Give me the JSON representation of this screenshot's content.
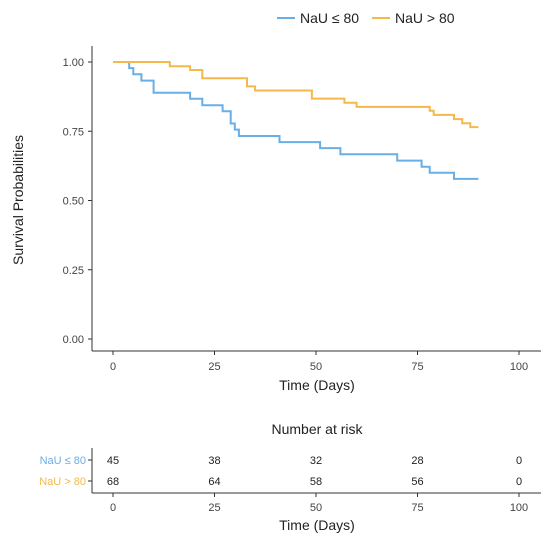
{
  "chart_data": {
    "type": "line",
    "step": true,
    "title": "",
    "xlabel": "Time (Days)",
    "ylabel": "Survival Probabilities",
    "xlim": [
      0,
      100
    ],
    "ylim": [
      0,
      1
    ],
    "x_ticks": [
      "0",
      "25",
      "50",
      "75",
      "100"
    ],
    "y_ticks": [
      "0.00",
      "0.25",
      "0.50",
      "0.75",
      "1.00"
    ],
    "legend_position": "top",
    "grid": false,
    "series": [
      {
        "name": "NaU ≤ 80",
        "color": "#6aaee6",
        "points": [
          [
            0,
            1.0
          ],
          [
            4,
            1.0
          ],
          [
            4,
            0.978
          ],
          [
            5,
            0.978
          ],
          [
            5,
            0.956
          ],
          [
            7,
            0.956
          ],
          [
            7,
            0.933
          ],
          [
            10,
            0.933
          ],
          [
            10,
            0.889
          ],
          [
            19,
            0.889
          ],
          [
            19,
            0.867
          ],
          [
            22,
            0.867
          ],
          [
            22,
            0.844
          ],
          [
            27,
            0.844
          ],
          [
            27,
            0.822
          ],
          [
            29,
            0.822
          ],
          [
            29,
            0.778
          ],
          [
            30,
            0.778
          ],
          [
            30,
            0.756
          ],
          [
            31,
            0.756
          ],
          [
            31,
            0.733
          ],
          [
            41,
            0.733
          ],
          [
            41,
            0.711
          ],
          [
            51,
            0.711
          ],
          [
            51,
            0.689
          ],
          [
            56,
            0.689
          ],
          [
            56,
            0.667
          ],
          [
            70,
            0.667
          ],
          [
            70,
            0.644
          ],
          [
            76,
            0.644
          ],
          [
            76,
            0.622
          ],
          [
            78,
            0.622
          ],
          [
            78,
            0.6
          ],
          [
            84,
            0.6
          ],
          [
            84,
            0.578
          ],
          [
            90,
            0.578
          ]
        ]
      },
      {
        "name": "NaU > 80",
        "color": "#f5b84a",
        "points": [
          [
            0,
            1.0
          ],
          [
            14,
            1.0
          ],
          [
            14,
            0.985
          ],
          [
            19,
            0.985
          ],
          [
            19,
            0.971
          ],
          [
            22,
            0.971
          ],
          [
            22,
            0.941
          ],
          [
            33,
            0.941
          ],
          [
            33,
            0.912
          ],
          [
            35,
            0.912
          ],
          [
            35,
            0.897
          ],
          [
            49,
            0.897
          ],
          [
            49,
            0.868
          ],
          [
            57,
            0.868
          ],
          [
            57,
            0.853
          ],
          [
            60,
            0.853
          ],
          [
            60,
            0.838
          ],
          [
            78,
            0.838
          ],
          [
            78,
            0.824
          ],
          [
            79,
            0.824
          ],
          [
            79,
            0.809
          ],
          [
            84,
            0.809
          ],
          [
            84,
            0.794
          ],
          [
            86,
            0.794
          ],
          [
            86,
            0.779
          ],
          [
            88,
            0.779
          ],
          [
            88,
            0.765
          ],
          [
            90,
            0.765
          ]
        ]
      }
    ],
    "risk_table": {
      "title": "Number at risk",
      "times": [
        0,
        25,
        50,
        75,
        100
      ],
      "xlabel": "Time (Days)",
      "rows": [
        {
          "label": "NaU ≤ 80",
          "color": "#6aaee6",
          "counts": [
            "45",
            "38",
            "32",
            "28",
            "0"
          ]
        },
        {
          "label": "NaU > 80",
          "color": "#f5b84a",
          "counts": [
            "68",
            "64",
            "58",
            "56",
            "0"
          ]
        }
      ]
    }
  }
}
